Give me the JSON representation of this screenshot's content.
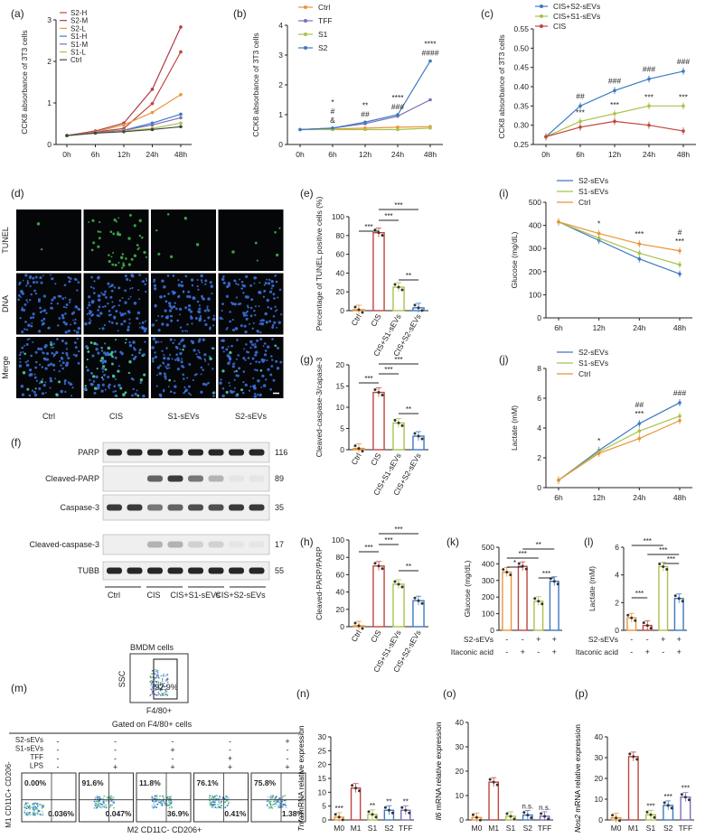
{
  "panels": {
    "a": {
      "letter": "(a)",
      "ylabel": "CCK8 absorbance of 3T3 cells",
      "yticks": [
        "0",
        "1",
        "2",
        "3"
      ],
      "xticks": [
        "0h",
        "6h",
        "12h",
        "24h",
        "48h"
      ],
      "legend": [
        "S2-H",
        "S2-M",
        "S2-L",
        "S1-H",
        "S1-M",
        "S1-L",
        "Ctrl"
      ]
    },
    "b": {
      "letter": "(b)",
      "ylabel": "CCK8 absorbance of 3T3 cells",
      "yticks": [
        "0",
        "1",
        "2",
        "3",
        "4"
      ],
      "xticks": [
        "0h",
        "6h",
        "12h",
        "24h",
        "48h"
      ],
      "legend": [
        "Ctrl",
        "TFF",
        "S1",
        "S2"
      ],
      "sig": [
        [
          "*",
          "#",
          "&"
        ],
        [
          "**",
          "##"
        ],
        [
          "****",
          "###"
        ],
        [
          "****",
          "####"
        ]
      ]
    },
    "c": {
      "letter": "(c)",
      "ylabel": "CCK8 absorbance of 3T3 cells",
      "yticks": [
        "0.25",
        "0.30",
        "0.35",
        "0.40",
        "0.45",
        "0.50",
        "0.55"
      ],
      "xticks": [
        "0h",
        "6h",
        "12h",
        "24h",
        "48h"
      ],
      "legend": [
        "CIS+S2-sEVs",
        "CIS+S1-sEVs",
        "CIS"
      ],
      "sig_top": [
        "##",
        "###",
        "###",
        "###"
      ],
      "sig_bottom": [
        "***",
        "***",
        "***",
        "***"
      ]
    },
    "d": {
      "letter": "(d)",
      "rows": [
        "TUNEL",
        "DNA",
        "Merge"
      ],
      "cols": [
        "Ctrl",
        "CIS",
        "S1-sEVs",
        "S2-sEVs"
      ]
    },
    "e": {
      "letter": "(e)",
      "ylabel": "Percentage of TUNEL positive cells (%)",
      "yticks": [
        "0",
        "20",
        "40",
        "60",
        "80",
        "100"
      ],
      "cats": [
        "Ctrl",
        "CIS",
        "CIS+S1-sEVs",
        "CIS+S2-sEVs"
      ],
      "brackets": [
        "***",
        "***",
        "***",
        "**"
      ]
    },
    "g": {
      "letter": "(g)",
      "ylabel": "Cleaved-caspase-3/capase-3",
      "yticks": [
        "0",
        "5",
        "10",
        "15",
        "20"
      ],
      "cats": [
        "Ctrl",
        "CIS",
        "CIS+S1-sEVs",
        "CIS+S2-sEVs"
      ],
      "brackets": [
        "***",
        "***",
        "***",
        "**"
      ]
    },
    "h": {
      "letter": "(h)",
      "ylabel": "Cleaved-PARP/PARP",
      "yticks": [
        "0",
        "20",
        "40",
        "60",
        "80",
        "100"
      ],
      "cats": [
        "Ctrl",
        "CIS",
        "CIS+S1-sEVs",
        "CIS+S2-sEVs"
      ],
      "brackets": [
        "***",
        "***",
        "***",
        "**"
      ]
    },
    "f": {
      "letter": "(f)",
      "bands": [
        "PARP",
        "Cleaved-PARP",
        "Caspase-3",
        "Cleaved-caspase-3",
        "TUBB"
      ],
      "kda": [
        "116",
        "89",
        "35",
        "17",
        "55"
      ],
      "groups": [
        "Ctrl",
        "CIS",
        "CIS+S1-sEVs",
        "CIS+S2-sEVs"
      ]
    },
    "i": {
      "letter": "(i)",
      "ylabel": "Glucose (mg/dL)",
      "yticks": [
        "0",
        "100",
        "200",
        "300",
        "400",
        "500"
      ],
      "xticks": [
        "6h",
        "12h",
        "24h",
        "48h"
      ],
      "legend": [
        "S2-sEVs",
        "S1-sEVs",
        "Ctrl"
      ],
      "sig": [
        "*",
        "***",
        "#",
        "***"
      ]
    },
    "j": {
      "letter": "(j)",
      "ylabel": "Lactate (mM)",
      "yticks": [
        "0",
        "2",
        "4",
        "6",
        "8"
      ],
      "xticks": [
        "6h",
        "12h",
        "24h",
        "48h"
      ],
      "legend": [
        "S2-sEVs",
        "S1-sEVs",
        "Ctrl"
      ],
      "sig": [
        "*",
        "##",
        "***",
        "###"
      ]
    },
    "k": {
      "letter": "(k)",
      "ylabel": "Glucose (mg/dL)",
      "yticks": [
        "0",
        "100",
        "200",
        "300",
        "400",
        "500"
      ],
      "brackets": [
        "*",
        "***",
        "**",
        "***"
      ],
      "row1": "S2-sEVs",
      "row2": "Itaconic acid",
      "signs1": [
        "-",
        "-",
        "+",
        "+"
      ],
      "signs2": [
        "-",
        "+",
        "-",
        "+"
      ]
    },
    "l": {
      "letter": "(l)",
      "ylabel": "Lactate (mM)",
      "yticks": [
        "0",
        "2",
        "4",
        "6"
      ],
      "brackets": [
        "***",
        "***",
        "***",
        "***"
      ],
      "row1": "S2-sEVs",
      "row2": "Itaconic acid",
      "signs1": [
        "-",
        "-",
        "+",
        "+"
      ],
      "signs2": [
        "-",
        "+",
        "-",
        "+"
      ]
    },
    "m": {
      "letter": "(m)",
      "bmdm_title": "BMDM cells",
      "ssc": "SSC",
      "f480": "F4/80+",
      "gate_pct": "92.9%",
      "gated": "Gated on F4/80+ cells",
      "row_labels": [
        "S2-sEVs",
        "S1-sEVs",
        "TFF",
        "LPS"
      ],
      "signs": [
        [
          "-",
          "-",
          "-",
          "-",
          "+"
        ],
        [
          "-",
          "-",
          "+",
          "-",
          "-"
        ],
        [
          "-",
          "-",
          "-",
          "+",
          "-"
        ],
        [
          "-",
          "+",
          "+",
          "+",
          "+"
        ]
      ],
      "q_ul": [
        "0.00%",
        "91.6%",
        "11.8%",
        "76.1%",
        "75.8%"
      ],
      "q_lr": [
        "0.036%",
        "0.047%",
        "36.9%",
        "0.41%",
        "1.38%"
      ],
      "yaxis": "M1 CD11C+ CD206-",
      "xaxis": "M2 CD11C- CD206+"
    },
    "n": {
      "letter": "(n)",
      "gene": "Tnfa",
      "ylabel_rest": " mRNA relative expression",
      "yticks": [
        "0",
        "5",
        "10",
        "15",
        "20",
        "25",
        "30"
      ],
      "cats": [
        "M0",
        "M1",
        "S1",
        "S2",
        "TFF"
      ],
      "sig": [
        "***",
        "",
        "**",
        "**",
        "**"
      ]
    },
    "o": {
      "letter": "(o)",
      "gene": "Il6",
      "ylabel_rest": " mRNA relative expression",
      "yticks": [
        "0",
        "10",
        "20",
        "30",
        "40"
      ],
      "cats": [
        "M0",
        "M1",
        "S1",
        "S2",
        "TFF"
      ],
      "sig": [
        "",
        "",
        "",
        "n.s.",
        "n.s."
      ]
    },
    "p": {
      "letter": "(p)",
      "gene": "Nos2",
      "ylabel_rest": " mRNA relative expression",
      "yticks": [
        "0",
        "10",
        "20",
        "30",
        "40"
      ],
      "cats": [
        "M0",
        "M1",
        "S1",
        "S2",
        "TFF"
      ],
      "sig": [
        "",
        "",
        "***",
        "***",
        "***"
      ]
    }
  },
  "chart_data": [
    {
      "type": "line",
      "panel": "a",
      "x": [
        "0h",
        "6h",
        "12h",
        "24h",
        "48h"
      ],
      "ylim": [
        0,
        3.5
      ],
      "series": [
        {
          "name": "S2-H",
          "values": [
            0.25,
            0.35,
            0.45,
            1.15,
            2.6
          ]
        },
        {
          "name": "S2-M",
          "values": [
            0.25,
            0.38,
            0.6,
            1.55,
            3.3
          ]
        },
        {
          "name": "S2-L",
          "values": [
            0.25,
            0.35,
            0.55,
            0.9,
            1.4
          ]
        },
        {
          "name": "S1-H",
          "values": [
            0.25,
            0.33,
            0.4,
            0.6,
            0.85
          ]
        },
        {
          "name": "S1-M",
          "values": [
            0.25,
            0.33,
            0.4,
            0.55,
            0.75
          ]
        },
        {
          "name": "S1-L",
          "values": [
            0.25,
            0.32,
            0.38,
            0.45,
            0.6
          ]
        },
        {
          "name": "Ctrl",
          "values": [
            0.25,
            0.32,
            0.36,
            0.42,
            0.5
          ]
        }
      ]
    },
    {
      "type": "line",
      "panel": "b",
      "x": [
        "0h",
        "6h",
        "12h",
        "24h",
        "48h"
      ],
      "ylim": [
        0,
        4
      ],
      "series": [
        {
          "name": "Ctrl",
          "values": [
            0.5,
            0.52,
            0.55,
            0.58,
            0.6
          ]
        },
        {
          "name": "TFF",
          "values": [
            0.5,
            0.55,
            0.7,
            0.95,
            1.5
          ]
        },
        {
          "name": "S1",
          "values": [
            0.5,
            0.5,
            0.5,
            0.5,
            0.55
          ]
        },
        {
          "name": "S2",
          "values": [
            0.5,
            0.55,
            0.75,
            1.0,
            2.8
          ]
        }
      ]
    },
    {
      "type": "line",
      "panel": "c",
      "x": [
        "0h",
        "6h",
        "12h",
        "24h",
        "48h"
      ],
      "ylim": [
        0.25,
        0.55
      ],
      "series": [
        {
          "name": "CIS+S2-sEVs",
          "values": [
            0.27,
            0.35,
            0.39,
            0.42,
            0.44
          ]
        },
        {
          "name": "CIS+S1-sEVs",
          "values": [
            0.27,
            0.31,
            0.33,
            0.35,
            0.35
          ]
        },
        {
          "name": "CIS",
          "values": [
            0.27,
            0.295,
            0.31,
            0.3,
            0.285
          ]
        }
      ]
    },
    {
      "type": "bar",
      "panel": "e",
      "categories": [
        "Ctrl",
        "CIS",
        "CIS+S1-sEVs",
        "CIS+S2-sEVs"
      ],
      "values": [
        1,
        83,
        25,
        3
      ],
      "ylim": [
        0,
        100
      ]
    },
    {
      "type": "bar",
      "panel": "g",
      "categories": [
        "Ctrl",
        "CIS",
        "CIS+S1-sEVs",
        "CIS+S2-sEVs"
      ],
      "values": [
        0.3,
        13.5,
        6.3,
        3.2
      ],
      "ylim": [
        0,
        20
      ]
    },
    {
      "type": "bar",
      "panel": "h",
      "categories": [
        "Ctrl",
        "CIS",
        "CIS+S1-sEVs",
        "CIS+S2-sEVs"
      ],
      "values": [
        1,
        70,
        49,
        30
      ],
      "ylim": [
        0,
        100
      ]
    },
    {
      "type": "line",
      "panel": "i",
      "x": [
        "6h",
        "12h",
        "24h",
        "48h"
      ],
      "ylim": [
        0,
        500
      ],
      "series": [
        {
          "name": "S2-sEVs",
          "values": [
            415,
            335,
            255,
            190
          ]
        },
        {
          "name": "S1-sEVs",
          "values": [
            415,
            345,
            280,
            230
          ]
        },
        {
          "name": "Ctrl",
          "values": [
            415,
            365,
            320,
            290
          ]
        }
      ]
    },
    {
      "type": "line",
      "panel": "j",
      "x": [
        "6h",
        "12h",
        "24h",
        "48h"
      ],
      "ylim": [
        0,
        8
      ],
      "series": [
        {
          "name": "S2-sEVs",
          "values": [
            0.5,
            2.5,
            4.3,
            5.7
          ]
        },
        {
          "name": "S1-sEVs",
          "values": [
            0.5,
            2.4,
            3.8,
            4.8
          ]
        },
        {
          "name": "Ctrl",
          "values": [
            0.5,
            2.3,
            3.3,
            4.5
          ]
        }
      ]
    },
    {
      "type": "bar",
      "panel": "k",
      "categories": [
        "1",
        "2",
        "3",
        "4"
      ],
      "values": [
        350,
        385,
        175,
        295
      ],
      "ylim": [
        0,
        500
      ]
    },
    {
      "type": "bar",
      "panel": "l",
      "categories": [
        "1",
        "2",
        "3",
        "4"
      ],
      "values": [
        0.9,
        0.35,
        4.6,
        2.3
      ],
      "ylim": [
        0,
        6
      ]
    },
    {
      "type": "bar",
      "panel": "n",
      "categories": [
        "M0",
        "M1",
        "S1",
        "S2",
        "TFF"
      ],
      "values": [
        1,
        11.5,
        2,
        3.5,
        3.5
      ],
      "ylim": [
        0,
        30
      ]
    },
    {
      "type": "bar",
      "panel": "o",
      "categories": [
        "M0",
        "M1",
        "S1",
        "S2",
        "TFF"
      ],
      "values": [
        1,
        15.5,
        1.5,
        2,
        1.5
      ],
      "ylim": [
        0,
        40
      ]
    },
    {
      "type": "bar",
      "panel": "p",
      "categories": [
        "M0",
        "M1",
        "S1",
        "S2",
        "TFF"
      ],
      "values": [
        1,
        30.5,
        2.5,
        7,
        11
      ],
      "ylim": [
        0,
        40
      ]
    }
  ],
  "colors": {
    "ctrl": "#e8953a",
    "s1": "#a9c24a",
    "s2": "#3c79c3",
    "cis": "#c0453d",
    "tff": "#7b6fb8",
    "red": "#c0453d",
    "blue": "#3c79c3",
    "green": "#a9c24a",
    "orange": "#e8953a"
  }
}
